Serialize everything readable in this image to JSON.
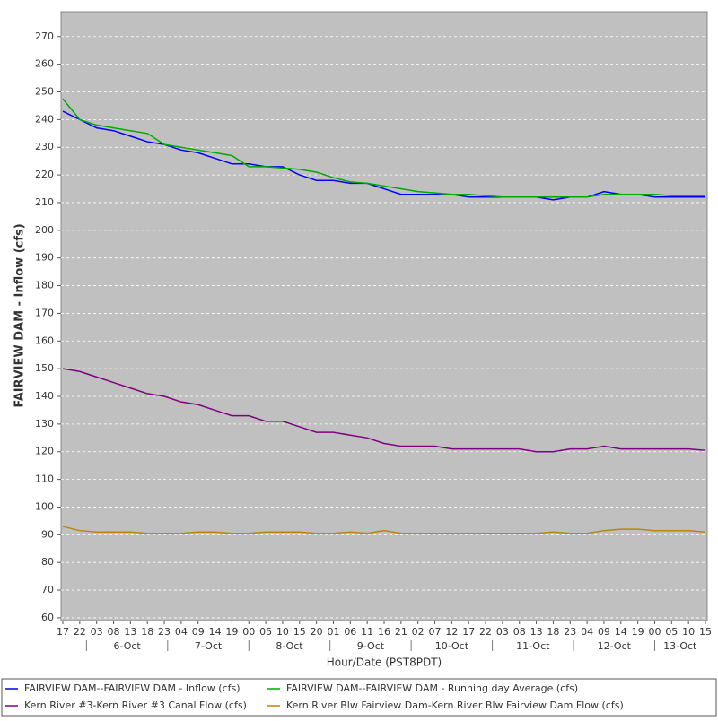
{
  "chart_data": {
    "type": "line",
    "y_label": "FAIRVIEW DAM - Inflow (cfs)",
    "x_label": "Hour/Date (PST8PDT)",
    "categories": [
      "17",
      "22",
      "03",
      "08",
      "13",
      "18",
      "23",
      "04",
      "09",
      "14",
      "19",
      "00",
      "05",
      "10",
      "15",
      "20",
      "01",
      "06",
      "11",
      "16",
      "21",
      "02",
      "07",
      "12",
      "17",
      "22",
      "03",
      "08",
      "13",
      "18",
      "23",
      "04",
      "09",
      "14",
      "19",
      "00",
      "05",
      "10",
      "15"
    ],
    "dates": [
      "6-Oct",
      "7-Oct",
      "8-Oct",
      "9-Oct",
      "10-Oct",
      "11-Oct",
      "12-Oct",
      "13-Oct"
    ],
    "ylim": [
      59,
      279
    ],
    "yticks": [
      60,
      70,
      80,
      90,
      100,
      110,
      120,
      130,
      140,
      150,
      160,
      170,
      180,
      190,
      200,
      210,
      220,
      230,
      240,
      250,
      260,
      270
    ],
    "grid": true,
    "series": [
      {
        "name": "FAIRVIEW DAM--FAIRVIEW DAM - Inflow  (cfs)",
        "color": "#0000ff",
        "values": [
          243,
          240,
          237,
          236,
          234,
          232,
          231,
          229,
          228,
          226,
          224,
          224,
          223,
          223,
          220,
          218,
          218,
          217,
          217,
          215,
          213,
          213,
          213,
          213,
          212,
          212,
          212,
          212,
          212,
          211,
          212,
          212,
          214,
          213,
          213,
          212,
          212,
          212,
          212
        ]
      },
      {
        "name": "FAIRVIEW DAM--FAIRVIEW DAM - Running day Average  (cfs)",
        "color": "#00aa00",
        "values": [
          247.5,
          240,
          238,
          237,
          236,
          235,
          231,
          230,
          229,
          228,
          227,
          223,
          223,
          222.5,
          222,
          221,
          219,
          217.5,
          217,
          216,
          215,
          214,
          213.5,
          213,
          213,
          212.5,
          212,
          212,
          212,
          212,
          212,
          212,
          213,
          213,
          213,
          213,
          212.5,
          212.5,
          212.5
        ]
      },
      {
        "name": "Kern River #3-Kern River #3 Canal Flow  (cfs)",
        "color": "#800080",
        "values": [
          150,
          149,
          147,
          145,
          143,
          141,
          140,
          138,
          137,
          135,
          133,
          133,
          131,
          131,
          129,
          127,
          127,
          126,
          125,
          123,
          122,
          122,
          122,
          121,
          121,
          121,
          121,
          121,
          120,
          120,
          121,
          121,
          122,
          121,
          121,
          121,
          121,
          121,
          120.5
        ]
      },
      {
        "name": "Kern River Blw Fairview Dam-Kern River Blw Fairview Dam Flow  (cfs)",
        "color": "#b8860b",
        "values": [
          93,
          91.5,
          91,
          91,
          91,
          90.5,
          90.5,
          90.5,
          91,
          91,
          90.5,
          90.5,
          91,
          91,
          91,
          90.5,
          90.5,
          91,
          90.5,
          91.5,
          90.5,
          90.5,
          90.5,
          90.5,
          90.5,
          90.5,
          90.5,
          90.5,
          90.5,
          91,
          90.5,
          90.5,
          91.5,
          92,
          92,
          91.5,
          91.5,
          91.5,
          91
        ]
      }
    ]
  }
}
